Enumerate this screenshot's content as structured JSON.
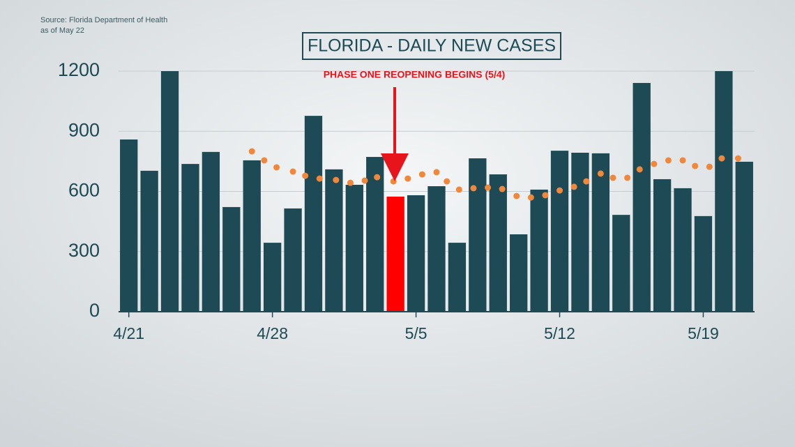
{
  "chart_data": {
    "type": "bar",
    "title": "FLORIDA - DAILY NEW CASES",
    "source": "Source: Florida Department of Health",
    "as_of": "as of May 22",
    "annotation": "PHASE ONE REOPENING BEGINS (5/4)",
    "categories": [
      "4/21",
      null,
      null,
      null,
      null,
      null,
      null,
      "4/28",
      null,
      null,
      null,
      null,
      null,
      null,
      "5/5",
      null,
      null,
      null,
      null,
      null,
      null,
      "5/12",
      null,
      null,
      null,
      null,
      null,
      null,
      "5/19",
      null,
      null
    ],
    "values": [
      859,
      703,
      1200,
      737,
      797,
      522,
      755,
      344,
      515,
      977,
      710,
      633,
      772,
      574,
      581,
      626,
      344,
      765,
      685,
      386,
      609,
      803,
      793,
      790,
      483,
      1141,
      661,
      616,
      477,
      1200,
      748
    ],
    "colors": [
      "#1d4a55",
      "#1d4a55",
      "#1d4a55",
      "#1d4a55",
      "#1d4a55",
      "#1d4a55",
      "#1d4a55",
      "#1d4a55",
      "#1d4a55",
      "#1d4a55",
      "#1d4a55",
      "#1d4a55",
      "#1d4a55",
      "#ff0000",
      "#1d4a55",
      "#1d4a55",
      "#1d4a55",
      "#1d4a55",
      "#1d4a55",
      "#1d4a55",
      "#1d4a55",
      "#1d4a55",
      "#1d4a55",
      "#1d4a55",
      "#1d4a55",
      "#1d4a55",
      "#1d4a55",
      "#1d4a55",
      "#1d4a55",
      "#1d4a55",
      "#1d4a55"
    ],
    "trend": {
      "color": "#f0873a",
      "x": [
        6.0,
        6.6,
        7.2,
        8.0,
        8.6,
        9.3,
        10.1,
        10.8,
        11.5,
        12.1,
        12.9,
        13.6,
        14.3,
        15.0,
        15.5,
        16.1,
        16.8,
        17.5,
        18.2,
        18.9,
        19.6,
        20.3,
        21.0,
        21.7,
        22.3,
        23.0,
        23.6,
        24.3,
        24.9,
        25.6,
        26.3,
        27.0,
        27.6,
        28.3,
        28.9,
        29.7
      ],
      "values": [
        800,
        755,
        720,
        699,
        678,
        664,
        657,
        643,
        654,
        671,
        650,
        664,
        685,
        696,
        650,
        609,
        616,
        619,
        612,
        577,
        570,
        581,
        605,
        623,
        650,
        689,
        668,
        668,
        710,
        737,
        755,
        755,
        727,
        723,
        765,
        765
      ]
    },
    "xlim": [
      -0.5,
      30.5
    ],
    "ylim": [
      0,
      1200
    ],
    "yticks": [
      0,
      300,
      600,
      900,
      1200
    ],
    "grid": true
  }
}
